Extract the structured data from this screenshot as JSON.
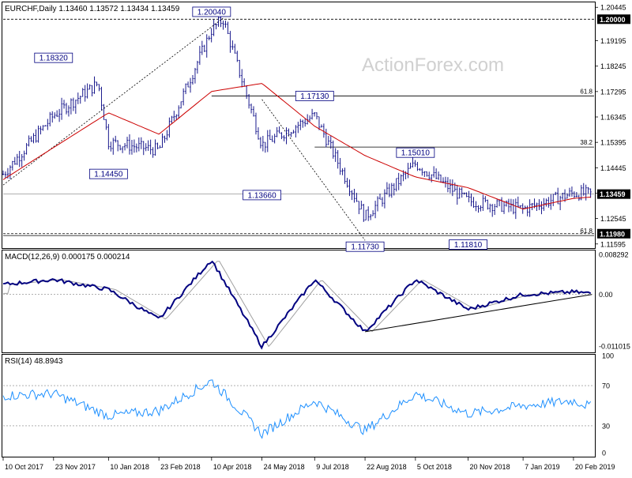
{
  "header": {
    "symbol_line": "EURCHF,Daily  1.13460 1.13572 1.13434 1.13459"
  },
  "watermark": "ActionForex.com",
  "colors": {
    "price_bars": "#000080",
    "ma_line": "#cc0000",
    "macd_line": "#000080",
    "signal_line": "#a0a0a0",
    "rsi_line": "#1e90ff",
    "grid": "#808080",
    "label_bg": "#ffffff",
    "current_price_bg": "#000000"
  },
  "chart_data": [
    {
      "type": "line",
      "panel": "price",
      "title": "EURCHF,Daily",
      "ohlc_header": {
        "open": 1.1346,
        "high": 1.13572,
        "low": 1.13434,
        "close": 1.13459
      },
      "y_ticks": [
        "1.20445",
        "1.19195",
        "1.18245",
        "1.17295",
        "1.16345",
        "1.15395",
        "1.14445",
        "1.13495",
        "1.12545",
        "1.11595"
      ],
      "ylim": [
        1.115,
        1.206
      ],
      "x_tick_labels": [
        "10 Oct 2017",
        "23 Nov 2017",
        "10 Jan 2018",
        "23 Feb 2018",
        "10 Apr 2018",
        "24 May 2018",
        "9 Jul 2018",
        "22 Aug 2018",
        "5 Oct 2018",
        "20 Nov 2018",
        "7 Jan 2019",
        "20 Feb 2019"
      ],
      "price_close_approx": [
        [
          "10 Oct 2017",
          1.142
        ],
        [
          "23 Nov 2017",
          1.164
        ],
        [
          "01 Jan 2018",
          1.176
        ],
        [
          "10 Jan 2018",
          1.154
        ],
        [
          "23 Feb 2018",
          1.151
        ],
        [
          "10 Apr 2018",
          1.196
        ],
        [
          "20 Apr 2018",
          1.2
        ],
        [
          "24 May 2018",
          1.153
        ],
        [
          "9 Jul 2018",
          1.164
        ],
        [
          "22 Aug 2018",
          1.126
        ],
        [
          "5 Oct 2018",
          1.146
        ],
        [
          "20 Nov 2018",
          1.132
        ],
        [
          "7 Jan 2019",
          1.129
        ],
        [
          "20 Feb 2019",
          1.135
        ],
        [
          "Mar 2019",
          1.1346
        ]
      ],
      "moving_average_approx": [
        [
          "10 Oct 2017",
          1.14
        ],
        [
          "23 Nov 2017",
          1.152
        ],
        [
          "10 Jan 2018",
          1.165
        ],
        [
          "23 Feb 2018",
          1.157
        ],
        [
          "10 Apr 2018",
          1.173
        ],
        [
          "24 May 2018",
          1.176
        ],
        [
          "9 Jul 2018",
          1.16
        ],
        [
          "22 Aug 2018",
          1.149
        ],
        [
          "5 Oct 2018",
          1.141
        ],
        [
          "20 Nov 2018",
          1.137
        ],
        [
          "7 Jan 2019",
          1.129
        ],
        [
          "20 Feb 2019",
          1.133
        ],
        [
          "Mar 2019",
          1.1335
        ]
      ],
      "horizontal_levels": [
        {
          "value": 1.2,
          "style": "dashed",
          "label": "1.20000"
        },
        {
          "value": 1.1198,
          "style": "dashed",
          "label": "1.11980"
        },
        {
          "value": 1.1346,
          "style": "solid-thin",
          "label": "1.13459",
          "current": true
        }
      ],
      "fibonacci_lines": [
        {
          "value": 1.1713,
          "label": "61.8"
        },
        {
          "value": 1.1522,
          "label": "38.2"
        },
        {
          "value": 1.1191,
          "label": "61.8"
        }
      ],
      "annotations": [
        {
          "text": "1.18320",
          "date": "23 Nov 2017",
          "value": 1.1832
        },
        {
          "text": "1.20040",
          "date": "10 Apr 2018",
          "value": 1.2004
        },
        {
          "text": "1.14450",
          "date": "10 Jan 2018",
          "value": 1.1445
        },
        {
          "text": "1.17130",
          "date": "9 Jul 2018",
          "value": 1.1713
        },
        {
          "text": "1.13660",
          "date": "24 May 2018",
          "value": 1.1366
        },
        {
          "text": "1.15010",
          "date": "5 Oct 2018",
          "value": 1.1501
        },
        {
          "text": "1.11730",
          "date": "22 Aug 2018",
          "value": 1.1173
        },
        {
          "text": "1.11810",
          "date": "20 Nov 2018",
          "value": 1.1181
        }
      ],
      "trendlines": [
        {
          "from": [
            "10 Oct 2017",
            1.138
          ],
          "to": [
            "20 Apr 2018",
            1.2004
          ],
          "style": "dotted"
        },
        {
          "from": [
            "24 May 2018",
            1.17
          ],
          "to": [
            "22 Aug 2018",
            1.1173
          ],
          "style": "dotted"
        }
      ]
    },
    {
      "type": "line",
      "panel": "macd",
      "title": "MACD(12,26,9) 0.000175 0.000214",
      "y_ticks": [
        "0.008292",
        "0.00",
        "-0.011015"
      ],
      "ylim": [
        -0.0115,
        0.0087
      ],
      "macd_line_approx": [
        [
          "10 Oct 2017",
          0.002
        ],
        [
          "23 Nov 2017",
          0.003
        ],
        [
          "10 Jan 2018",
          0.001
        ],
        [
          "23 Feb 2018",
          -0.005
        ],
        [
          "10 Apr 2018",
          0.007
        ],
        [
          "24 May 2018",
          -0.0105
        ],
        [
          "9 Jul 2018",
          0.003
        ],
        [
          "22 Aug 2018",
          -0.0075
        ],
        [
          "5 Oct 2018",
          0.003
        ],
        [
          "20 Nov 2018",
          -0.003
        ],
        [
          "7 Jan 2019",
          0.0
        ],
        [
          "20 Feb 2019",
          0.0005
        ],
        [
          "Mar 2019",
          0.0002
        ]
      ],
      "trendline": {
        "from": [
          "22 Aug 2018",
          -0.0075
        ],
        "to": [
          "Mar 2019",
          0.0
        ]
      }
    },
    {
      "type": "line",
      "panel": "rsi",
      "title": "RSI(14) 48.8943",
      "y_ticks": [
        "100",
        "70",
        "30",
        "0"
      ],
      "ylim": [
        0,
        100
      ],
      "rsi_approx": [
        [
          "10 Oct 2017",
          60
        ],
        [
          "23 Nov 2017",
          62
        ],
        [
          "10 Jan 2018",
          40
        ],
        [
          "23 Feb 2018",
          45
        ],
        [
          "10 Apr 2018",
          75
        ],
        [
          "24 May 2018",
          22
        ],
        [
          "9 Jul 2018",
          55
        ],
        [
          "22 Aug 2018",
          25
        ],
        [
          "5 Oct 2018",
          62
        ],
        [
          "20 Nov 2018",
          42
        ],
        [
          "7 Jan 2019",
          50
        ],
        [
          "20 Feb 2019",
          55
        ],
        [
          "Mar 2019",
          48.9
        ]
      ],
      "levels": [
        70,
        30
      ]
    }
  ]
}
